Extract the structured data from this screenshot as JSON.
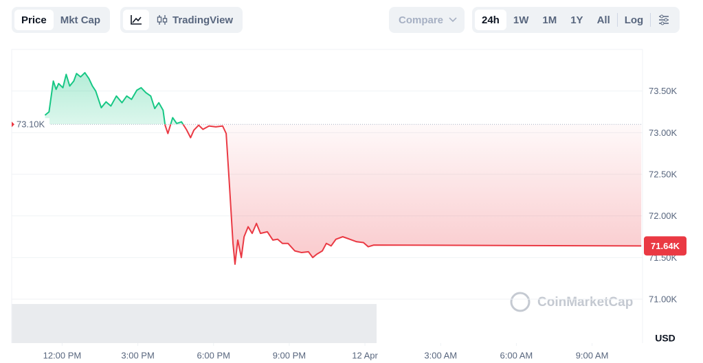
{
  "toolbar": {
    "price": "Price",
    "mkt_cap": "Mkt Cap",
    "tradingview": "TradingView",
    "compare": "Compare",
    "ranges": [
      "24h",
      "1W",
      "1M",
      "1Y",
      "All"
    ],
    "log": "Log"
  },
  "chart_data": {
    "type": "line",
    "currency": "USD",
    "watermark": "CoinMarketCap",
    "colors": {
      "up": "#16c784",
      "down": "#ea3943"
    },
    "open_price": {
      "value": 73.1,
      "label": "73.10K"
    },
    "last_price": {
      "value": 71.64,
      "label": "71.64K"
    },
    "xlim": [
      -2,
      23
    ],
    "xticks": [
      {
        "value": 0,
        "label": "12:00 PM"
      },
      {
        "value": 3,
        "label": "3:00 PM"
      },
      {
        "value": 6,
        "label": "6:00 PM"
      },
      {
        "value": 9,
        "label": "9:00 PM"
      },
      {
        "value": 12,
        "label": "12 Apr"
      },
      {
        "value": 15,
        "label": "3:00 AM"
      },
      {
        "value": 18,
        "label": "6:00 AM"
      },
      {
        "value": 21,
        "label": "9:00 AM"
      }
    ],
    "ylim": [
      71.0,
      74.0
    ],
    "yticks": [
      {
        "value": 71.0,
        "label": "71.00K"
      },
      {
        "value": 71.5,
        "label": "71.50K"
      },
      {
        "value": 72.0,
        "label": "72.00K"
      },
      {
        "value": 72.5,
        "label": "72.50K"
      },
      {
        "value": 73.0,
        "label": "73.00K"
      },
      {
        "value": 73.5,
        "label": "73.50K"
      }
    ],
    "x": [
      -0.68,
      -0.52,
      -0.35,
      -0.24,
      -0.14,
      0.03,
      0.16,
      0.3,
      0.46,
      0.57,
      0.73,
      0.9,
      1.06,
      1.2,
      1.33,
      1.55,
      1.74,
      1.93,
      2.15,
      2.37,
      2.56,
      2.75,
      2.96,
      3.13,
      3.32,
      3.51,
      3.67,
      3.83,
      4.0,
      4.08,
      4.19,
      4.38,
      4.54,
      4.73,
      4.92,
      5.09,
      5.22,
      5.41,
      5.58,
      5.82,
      6.09,
      6.36,
      6.5,
      6.63,
      6.77,
      6.85,
      6.96,
      7.1,
      7.21,
      7.37,
      7.53,
      7.7,
      7.86,
      8.13,
      8.35,
      8.54,
      8.73,
      8.95,
      9.22,
      9.49,
      9.76,
      9.93,
      10.09,
      10.31,
      10.47,
      10.66,
      10.85,
      11.12,
      11.4,
      11.67,
      11.94,
      12.13,
      12.35,
      22.95
    ],
    "values": [
      73.21,
      73.25,
      73.62,
      73.52,
      73.59,
      73.54,
      73.7,
      73.56,
      73.62,
      73.71,
      73.67,
      73.72,
      73.65,
      73.56,
      73.5,
      73.3,
      73.37,
      73.32,
      73.44,
      73.36,
      73.44,
      73.4,
      73.51,
      73.54,
      73.48,
      73.44,
      73.29,
      73.36,
      73.27,
      73.09,
      72.99,
      73.18,
      73.11,
      73.13,
      73.04,
      72.94,
      73.03,
      73.09,
      73.04,
      73.08,
      73.07,
      73.08,
      72.99,
      72.37,
      71.67,
      71.42,
      71.71,
      71.5,
      71.75,
      71.87,
      71.79,
      71.91,
      71.79,
      71.81,
      71.71,
      71.72,
      71.67,
      71.67,
      71.58,
      71.56,
      71.57,
      71.5,
      71.54,
      71.58,
      71.67,
      71.64,
      71.72,
      71.75,
      71.72,
      71.69,
      71.68,
      71.63,
      71.65,
      71.64
    ]
  }
}
